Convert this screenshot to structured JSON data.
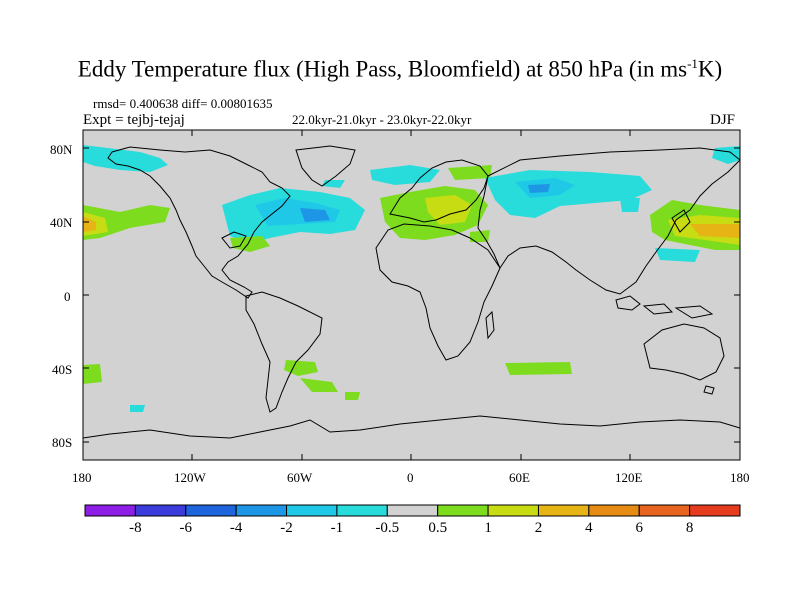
{
  "title": {
    "main": "Eddy Temperature flux (High Pass, Bloomfield) at 850 hPa (in ms",
    "sup": "-1",
    "tail": "K)"
  },
  "stats": "rmsd= 0.400638  diff= 0.00801635",
  "experiment": "Expt = tejbj-tejaj",
  "period": "22.0kyr-21.0kyr - 23.0kyr-22.0kyr",
  "season": "DJF",
  "lat_ticks": [
    "80N",
    "40N",
    "0",
    "40S",
    "80S"
  ],
  "lon_ticks": [
    "180",
    "120W",
    "60W",
    "0",
    "60E",
    "120E",
    "180"
  ],
  "colorbar": {
    "labels": [
      "-8",
      "-6",
      "-4",
      "-2",
      "-1",
      "-0.5",
      "0.5",
      "1",
      "2",
      "4",
      "6",
      "8"
    ],
    "colors": [
      "#8c1ee6",
      "#3c3cdc",
      "#1e64dc",
      "#1e96e6",
      "#1ec8e6",
      "#28dcdc",
      "#d2d2d2",
      "#7ddc1e",
      "#c8dc14",
      "#e6b414",
      "#e68c14",
      "#e6641e",
      "#e63c1e"
    ]
  },
  "chart_data": {
    "type": "heatmap",
    "projection": "cylindrical-equidistant",
    "xlim": [
      -180,
      180
    ],
    "ylim": [
      -90,
      90
    ],
    "background_value_range": [
      -0.5,
      0.5
    ],
    "colors": {
      "land_outline": "#000000",
      "neutral": "#d2d2d2",
      "cyan": "#28dcdc",
      "light_blue": "#1ec8e6",
      "blue": "#1e96e6",
      "green": "#7ddc1e",
      "yellow": "#c8dc14",
      "orange": "#e6b414"
    }
  }
}
